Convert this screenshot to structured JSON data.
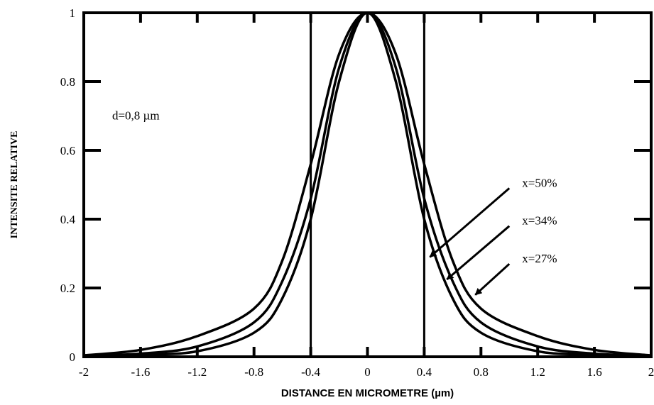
{
  "chart_data": {
    "type": "line",
    "xlabel": "DISTANCE EN MICROMETRE (µm)",
    "ylabel": "INTENSITE RELATIVE",
    "xlim": [
      -2,
      2
    ],
    "ylim": [
      0,
      1
    ],
    "grid": false,
    "x_ticks": [
      -2,
      -1.6,
      -1.2,
      -0.8,
      -0.4,
      0,
      0.4,
      0.8,
      1.2,
      1.6,
      2
    ],
    "x_tick_labels": [
      "-2",
      "-1.6",
      "-1.2",
      "-0.8",
      "-0.4",
      "0",
      "0.4",
      "0.8",
      "1.2",
      "1.6",
      "2"
    ],
    "y_ticks": [
      0,
      0.2,
      0.4,
      0.6,
      0.8,
      1
    ],
    "y_tick_labels": [
      "0",
      "0.2",
      "0.4",
      "0.6",
      "0.8",
      "1"
    ],
    "vertical_lines": [
      -0.4,
      0.4
    ],
    "annotation": "d=0,8 µm",
    "series": [
      {
        "name": "x=50%",
        "x": [
          -2,
          -1.6,
          -1.2,
          -0.8,
          -0.6,
          -0.4,
          -0.2,
          0,
          0.2,
          0.4,
          0.6,
          0.8,
          1.2,
          1.6,
          2
        ],
        "values": [
          0.002,
          0.006,
          0.016,
          0.07,
          0.17,
          0.4,
          0.8,
          1.0,
          0.8,
          0.4,
          0.17,
          0.07,
          0.016,
          0.006,
          0.002
        ]
      },
      {
        "name": "x=34%",
        "x": [
          -2,
          -1.6,
          -1.2,
          -0.8,
          -0.6,
          -0.4,
          -0.2,
          0,
          0.2,
          0.4,
          0.6,
          0.8,
          1.2,
          1.6,
          2
        ],
        "values": [
          0.003,
          0.009,
          0.03,
          0.1,
          0.22,
          0.46,
          0.84,
          1.0,
          0.84,
          0.46,
          0.22,
          0.1,
          0.03,
          0.009,
          0.003
        ]
      },
      {
        "name": "x=27%",
        "x": [
          -2,
          -1.6,
          -1.2,
          -0.8,
          -0.6,
          -0.4,
          -0.2,
          0,
          0.2,
          0.4,
          0.6,
          0.8,
          1.2,
          1.6,
          2
        ],
        "values": [
          0.004,
          0.02,
          0.06,
          0.14,
          0.28,
          0.56,
          0.88,
          1.0,
          0.88,
          0.56,
          0.28,
          0.14,
          0.06,
          0.02,
          0.004
        ]
      }
    ],
    "arrows": [
      {
        "label": "x=50%",
        "from": [
          1.0,
          0.49
        ],
        "to": [
          0.44,
          0.29
        ]
      },
      {
        "label": "x=34%",
        "from": [
          1.0,
          0.38
        ],
        "to": [
          0.56,
          0.225
        ]
      },
      {
        "label": "x=27%",
        "from": [
          1.0,
          0.27
        ],
        "to": [
          0.76,
          0.18
        ]
      }
    ]
  }
}
